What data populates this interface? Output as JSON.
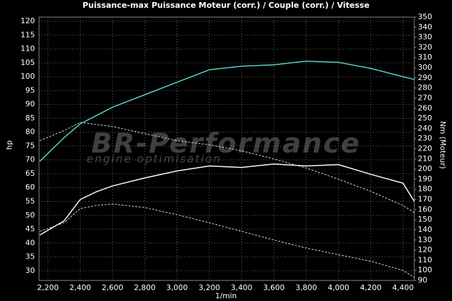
{
  "chart_data": {
    "type": "line",
    "title": "Puissance-max Puissance Moteur (corr.) / Couple (corr.) / Vitesse",
    "x_label": "1/min",
    "y_label": "hp",
    "y2_label": "Nm (Moteur)",
    "watermark": "BR-Performance",
    "watermark_subtitle": "engine optimisation",
    "xlim": [
      2145,
      4470
    ],
    "xticks": [
      {
        "value": 2200,
        "label": "2,200"
      },
      {
        "value": 2400,
        "label": "2,400"
      },
      {
        "value": 2600,
        "label": "2,600"
      },
      {
        "value": 2800,
        "label": "2,800"
      },
      {
        "value": 3000,
        "label": "3,000"
      },
      {
        "value": 3200,
        "label": "3,200"
      },
      {
        "value": 3400,
        "label": "3,400"
      },
      {
        "value": 3600,
        "label": "3,600"
      },
      {
        "value": 3800,
        "label": "3,800"
      },
      {
        "value": 4000,
        "label": "4,000"
      },
      {
        "value": 4200,
        "label": "4,200"
      },
      {
        "value": 4400,
        "label": "4,400"
      }
    ],
    "ylim": [
      26.5,
      121.5
    ],
    "yticks": [
      30,
      35,
      40,
      45,
      50,
      55,
      60,
      65,
      70,
      75,
      80,
      85,
      90,
      95,
      100,
      105,
      110,
      115,
      120
    ],
    "y2lim": [
      90,
      350
    ],
    "y2ticks": [
      90,
      100,
      110,
      120,
      130,
      140,
      150,
      160,
      170,
      180,
      190,
      200,
      210,
      220,
      230,
      240,
      250,
      260,
      270,
      280,
      290,
      300,
      310,
      320,
      330,
      340,
      350
    ],
    "grid": true,
    "x": [
      2150,
      2300,
      2400,
      2500,
      2600,
      2800,
      3000,
      3200,
      3400,
      3600,
      3800,
      4000,
      4200,
      4400,
      4470
    ],
    "series": [
      {
        "color": "#5fd0cf",
        "dashed": false,
        "values": [
          69.5,
          78,
          83,
          86,
          89,
          93.5,
          98,
          102.5,
          103.8,
          104.3,
          105.6,
          105.2,
          103,
          100,
          99
        ]
      },
      {
        "color": "#ffffff",
        "dashed": false,
        "values": [
          42.9,
          48,
          55.7,
          58.5,
          60.6,
          63.5,
          66,
          67.8,
          67.3,
          68.5,
          67.8,
          68.3,
          64.8,
          61.6,
          55
        ]
      },
      {
        "color": "#d8d8d8",
        "dashed": true,
        "axis": "y2",
        "values": [
          228,
          238,
          246,
          244,
          242,
          235,
          228,
          224,
          218,
          210,
          201,
          190,
          178,
          164,
          157
        ]
      },
      {
        "color": "#d8d8d8",
        "dashed": true,
        "axis": "y2",
        "values": [
          138.5,
          147,
          161,
          164,
          165.5,
          162,
          155,
          147,
          138.5,
          130,
          122,
          115.5,
          109,
          100,
          93
        ]
      }
    ]
  }
}
